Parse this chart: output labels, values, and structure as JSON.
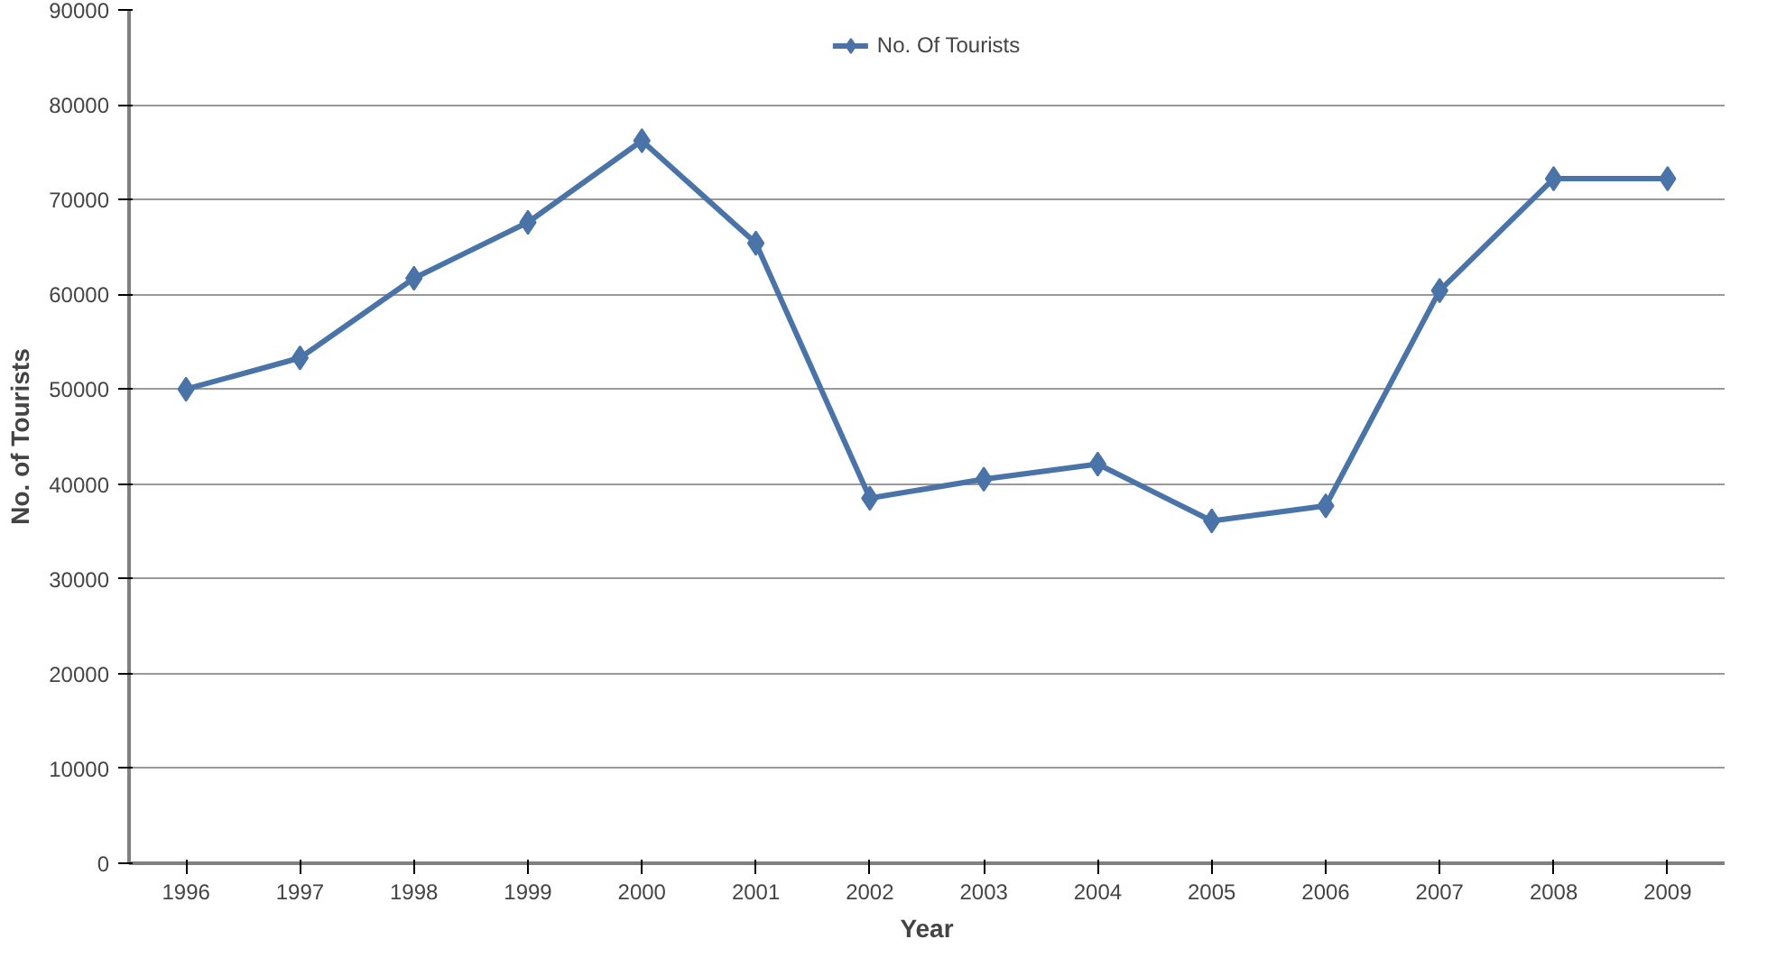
{
  "chart_data": {
    "type": "line",
    "xlabel": "Year",
    "ylabel": "No. of Tourists",
    "categories": [
      "1996",
      "1997",
      "1998",
      "1999",
      "2000",
      "2001",
      "2002",
      "2003",
      "2004",
      "2005",
      "2006",
      "2007",
      "2008",
      "2009"
    ],
    "series": [
      {
        "name": "No. Of Tourists",
        "color": "#4a74a8",
        "values": [
          50000,
          53300,
          61700,
          67600,
          76200,
          65400,
          38500,
          40500,
          42100,
          36100,
          37700,
          60400,
          72200,
          72200
        ]
      }
    ],
    "ylim": [
      0,
      90000
    ],
    "yticks": [
      0,
      10000,
      20000,
      30000,
      40000,
      50000,
      60000,
      70000,
      80000,
      90000
    ],
    "grid": "y",
    "legend": "top",
    "marker": "diamond",
    "line_style": "solid"
  }
}
